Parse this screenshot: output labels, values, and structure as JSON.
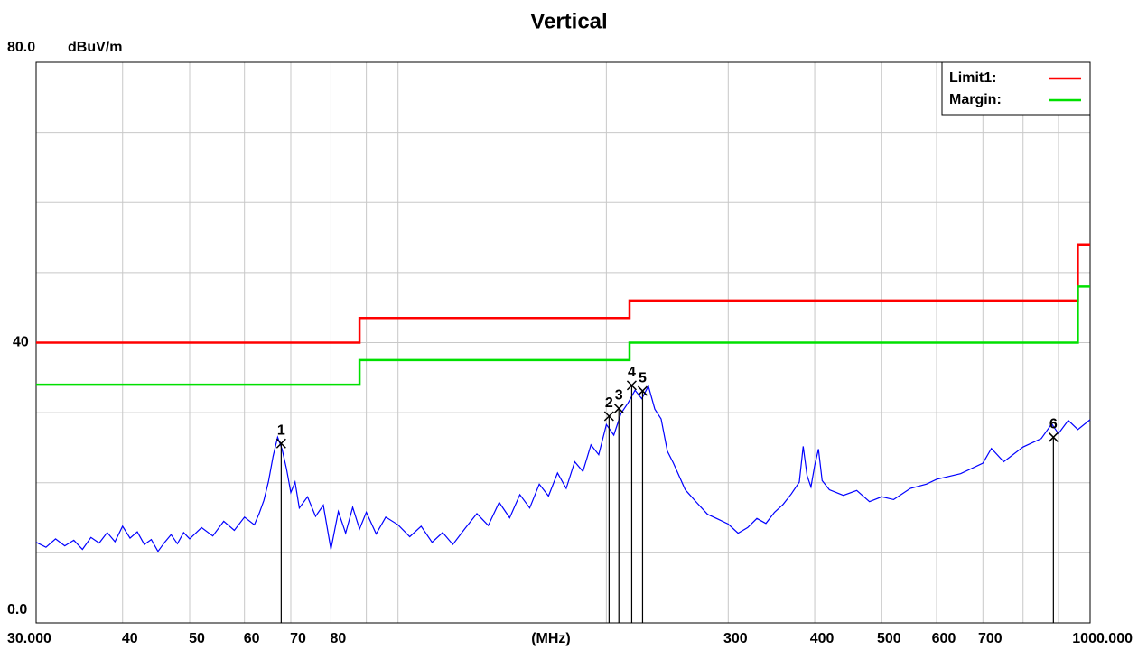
{
  "chart_data": {
    "type": "line",
    "title": "Vertical",
    "y_unit_label": "dBuV/m",
    "x_label": "(MHz)",
    "log_x": true,
    "grid": true,
    "legend": "upper right",
    "xlim": [
      30,
      1000
    ],
    "ylim": [
      0,
      80
    ],
    "xticks": [
      {
        "value": 30,
        "label": "30.000"
      },
      40,
      50,
      60,
      70,
      80,
      300,
      400,
      500,
      600,
      700,
      {
        "value": 1000,
        "label": "1000.000"
      }
    ],
    "yticks": [
      {
        "value": 0,
        "label": "0.0"
      },
      40,
      {
        "value": 80,
        "label": "80.0"
      }
    ],
    "xgrid": [
      30,
      40,
      50,
      60,
      70,
      80,
      90,
      100,
      200,
      300,
      400,
      500,
      600,
      700,
      800,
      900,
      1000
    ],
    "ygrid": [
      0,
      10,
      20,
      30,
      40,
      50,
      60,
      70,
      80
    ],
    "series": [
      {
        "name": "Limit1:",
        "color": "#ff0000",
        "x": [
          30,
          88,
          88,
          216,
          216,
          960,
          960,
          1000
        ],
        "values": [
          40,
          40,
          43.5,
          43.5,
          46,
          46,
          54,
          54
        ]
      },
      {
        "name": "Margin:",
        "color": "#00e000",
        "x": [
          30,
          88,
          88,
          216,
          216,
          960,
          960,
          1000
        ],
        "values": [
          34,
          34,
          37.5,
          37.5,
          40,
          40,
          48,
          48
        ]
      },
      {
        "color": "#0000ff",
        "x": [
          30,
          31,
          32,
          33,
          34,
          35,
          36,
          37,
          38,
          39,
          40,
          41,
          42,
          43,
          44,
          45,
          46,
          47,
          48,
          49,
          50,
          52,
          54,
          56,
          58,
          60,
          62,
          63,
          64,
          65,
          66,
          67,
          68,
          69,
          70,
          71,
          72,
          74,
          76,
          78,
          80,
          82,
          84,
          86,
          88,
          90,
          93,
          96,
          100,
          104,
          108,
          112,
          116,
          120,
          125,
          130,
          135,
          140,
          145,
          150,
          155,
          160,
          165,
          170,
          175,
          180,
          185,
          190,
          195,
          200,
          205,
          210,
          215,
          220,
          225,
          230,
          235,
          240,
          245,
          250,
          260,
          270,
          280,
          290,
          300,
          310,
          320,
          330,
          340,
          350,
          360,
          370,
          380,
          385,
          390,
          395,
          400,
          405,
          410,
          420,
          440,
          460,
          480,
          500,
          520,
          550,
          580,
          600,
          650,
          700,
          720,
          750,
          800,
          850,
          880,
          900,
          930,
          960,
          1000
        ],
        "values": [
          11.5,
          10.8,
          12.0,
          11.0,
          11.8,
          10.5,
          12.2,
          11.4,
          12.9,
          11.6,
          13.8,
          12.1,
          13.0,
          11.2,
          11.9,
          10.2,
          11.5,
          12.6,
          11.3,
          12.9,
          12.0,
          13.6,
          12.4,
          14.5,
          13.2,
          15.1,
          14.0,
          15.6,
          17.5,
          20.2,
          23.8,
          26.5,
          24.8,
          22.0,
          18.6,
          20.1,
          16.4,
          18.0,
          15.2,
          16.8,
          10.5,
          15.9,
          12.8,
          16.5,
          13.4,
          15.8,
          12.7,
          15.1,
          14.0,
          12.3,
          13.8,
          11.5,
          12.9,
          11.2,
          13.5,
          15.6,
          13.9,
          17.2,
          15.0,
          18.3,
          16.4,
          19.8,
          18.1,
          21.4,
          19.2,
          23.0,
          21.6,
          25.4,
          24.0,
          28.3,
          26.8,
          29.9,
          31.4,
          33.2,
          32.0,
          33.8,
          30.5,
          29.1,
          24.5,
          22.8,
          19.0,
          17.2,
          15.5,
          14.8,
          14.1,
          12.8,
          13.6,
          14.9,
          14.2,
          15.8,
          16.9,
          18.4,
          20.1,
          25.2,
          21.0,
          19.4,
          22.5,
          24.8,
          20.3,
          19.0,
          18.2,
          18.9,
          17.3,
          18.0,
          17.6,
          19.2,
          19.8,
          20.5,
          21.3,
          22.8,
          24.9,
          23.0,
          25.1,
          26.3,
          28.4,
          27.0,
          28.9,
          27.6,
          29.0
        ]
      }
    ],
    "markers": {
      "labels": [
        "1",
        "2",
        "3",
        "4",
        "5",
        "6"
      ],
      "x": [
        67.8,
        201.8,
        208.5,
        217.6,
        225.6,
        885
      ],
      "values": [
        25.6,
        29.5,
        30.6,
        33.9,
        33.1,
        26.5
      ]
    }
  }
}
